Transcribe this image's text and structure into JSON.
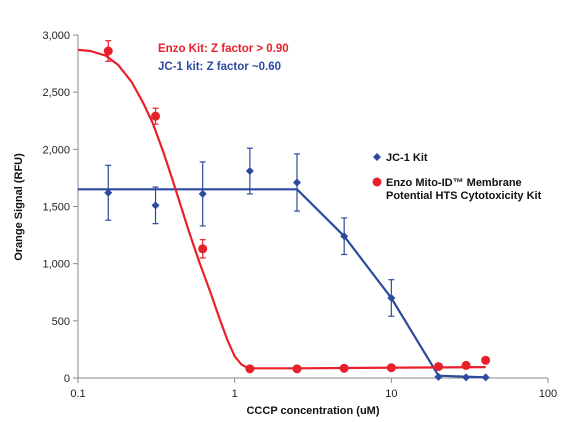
{
  "chart_data": {
    "type": "scatter",
    "xlabel": "CCCP concentration (uM)",
    "ylabel": "Orange Signal (RFU)",
    "xscale": "log",
    "xlim": [
      0.1,
      100
    ],
    "ylim": [
      0,
      3000
    ],
    "x_ticks": [
      0.1,
      1,
      10,
      100
    ],
    "x_tick_labels": [
      "0.1",
      "1",
      "10",
      "100"
    ],
    "y_ticks": [
      0,
      500,
      1000,
      1500,
      2000,
      2500,
      3000
    ],
    "y_tick_labels": [
      "0",
      "500",
      "1,000",
      "1,500",
      "2,000",
      "2,500",
      "3,000"
    ],
    "grid": false,
    "legend_position": "right",
    "annotations": [
      {
        "text": "Enzo Kit: Z factor > 0.90",
        "color": "#e8202a"
      },
      {
        "text": "JC-1 kit:  Z factor  ~0.60",
        "color": "#2c4a9e"
      }
    ],
    "series": [
      {
        "name": "JC-1  Kit",
        "marker": "diamond",
        "color": "#2c4a9e",
        "x": [
          0.156,
          0.3125,
          0.625,
          1.25,
          2.5,
          5,
          10,
          20,
          30,
          40
        ],
        "y": [
          1620,
          1510,
          1610,
          1810,
          1710,
          1240,
          700,
          10,
          5,
          5
        ],
        "err": [
          240,
          160,
          280,
          200,
          250,
          160,
          160,
          0,
          0,
          0
        ],
        "fit_x": [
          0.1,
          2.5,
          5,
          10,
          20,
          40
        ],
        "fit_y": [
          1650,
          1650,
          1240,
          700,
          20,
          5
        ]
      },
      {
        "name": "Enzo Mito-ID™ Membrane Potential HTS Cytotoxicity Kit",
        "marker": "circle",
        "color": "#e8202a",
        "x": [
          0.156,
          0.3125,
          0.625,
          1.25,
          2.5,
          5,
          10,
          20,
          30,
          40
        ],
        "y": [
          2860,
          2290,
          1130,
          80,
          80,
          85,
          90,
          100,
          110,
          155
        ],
        "err": [
          90,
          70,
          80,
          0,
          0,
          0,
          0,
          0,
          0,
          0
        ],
        "fit_x": [
          0.1,
          0.12,
          0.15,
          0.18,
          0.22,
          0.26,
          0.3,
          0.35,
          0.4,
          0.45,
          0.5,
          0.55,
          0.6,
          0.7,
          0.8,
          0.9,
          1.0,
          1.1,
          1.2,
          1.3,
          2.5,
          40
        ],
        "fit_y": [
          2870,
          2860,
          2820,
          2740,
          2590,
          2410,
          2230,
          1980,
          1740,
          1520,
          1320,
          1150,
          1000,
          750,
          520,
          330,
          190,
          120,
          90,
          85,
          85,
          95
        ]
      }
    ]
  }
}
